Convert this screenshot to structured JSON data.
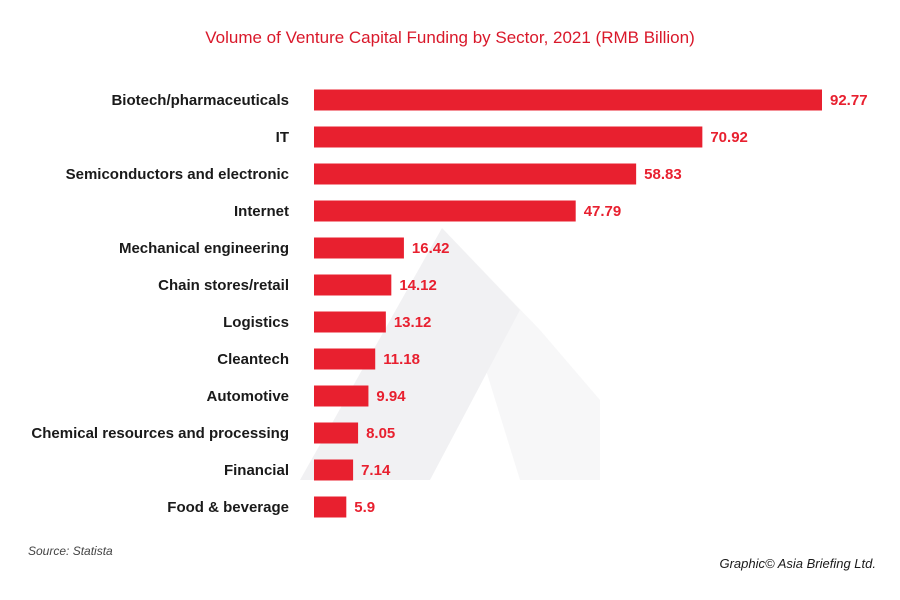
{
  "chart_data": {
    "type": "bar",
    "orientation": "horizontal",
    "title": "Volume of Venture Capital Funding by Sector, 2021 (RMB Billion)",
    "categories": [
      "Biotech/pharmaceuticals",
      "IT",
      "Semiconductors and electronic",
      "Internet",
      "Mechanical engineering",
      "Chain stores/retail",
      "Logistics",
      "Cleantech",
      "Automotive",
      "Chemical resources and processing",
      "Financial",
      "Food & beverage"
    ],
    "values": [
      92.77,
      70.92,
      58.83,
      47.79,
      16.42,
      14.12,
      13.12,
      11.18,
      9.94,
      8.05,
      7.14,
      5.9
    ],
    "value_labels": [
      "92.77",
      "70.92",
      "58.83",
      "47.79",
      "16.42",
      "14.12",
      "13.12",
      "11.18",
      "9.94",
      "8.05",
      "7.14",
      "5.9"
    ],
    "xlim": [
      0,
      100
    ],
    "grid": false,
    "legend": "none"
  },
  "footer": {
    "source": "Source: Statista",
    "credit": "Graphic© Asia Briefing Ltd."
  },
  "colors": {
    "bar": "#e8202f",
    "value_text": "#e8202f",
    "title_text": "#d9182a",
    "watermark": "#f1f1f3"
  },
  "watermark_icon": "asia-briefing-logo-watermark"
}
